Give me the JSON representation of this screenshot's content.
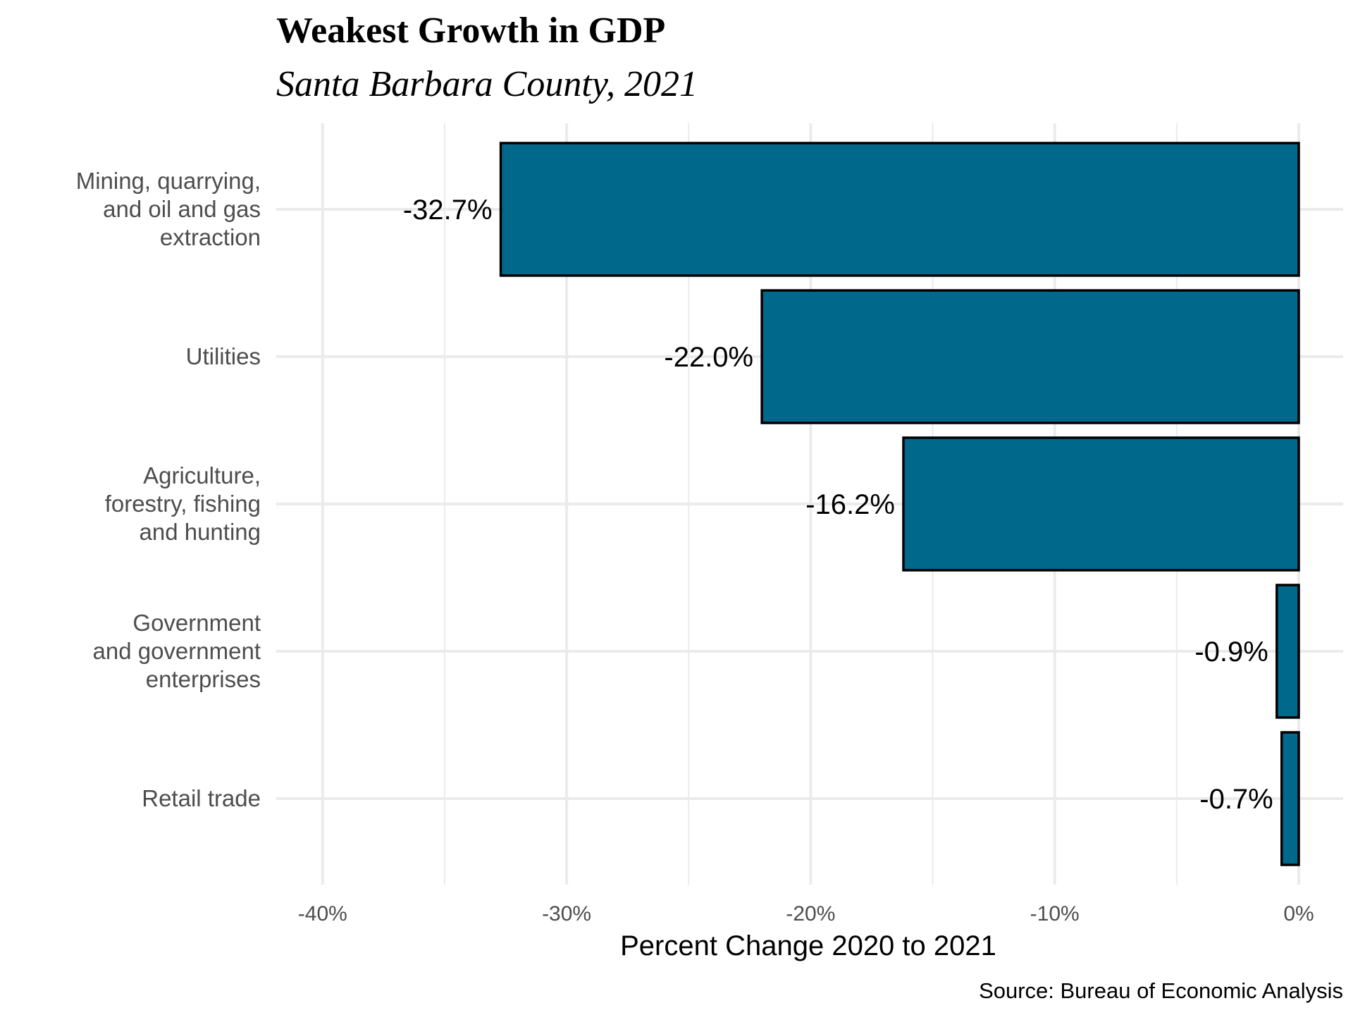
{
  "chart_data": {
    "type": "bar",
    "orientation": "horizontal",
    "title": "Weakest Growth in GDP",
    "subtitle": "Santa Barbara County, 2021",
    "categories": [
      [
        "Mining, quarrying,",
        "and oil and gas",
        "extraction"
      ],
      [
        "Utilities"
      ],
      [
        "Agriculture,",
        "forestry, fishing",
        "and hunting"
      ],
      [
        "Government",
        "and government",
        "enterprises"
      ],
      [
        "Retail trade"
      ]
    ],
    "values": [
      -32.7,
      -22.0,
      -16.2,
      -0.9,
      -0.7
    ],
    "data_labels": [
      "-32.7%",
      "-22.0%",
      "-16.2%",
      "-0.9%",
      "-0.7%"
    ],
    "xlabel": "Percent Change 2020 to 2021",
    "ylabel": "",
    "xlim": [
      -40,
      0
    ],
    "x_ticks": [
      -40,
      -30,
      -20,
      -10,
      0
    ],
    "x_tick_labels": [
      "-40%",
      "-30%",
      "-20%",
      "-10%",
      "0%"
    ],
    "caption": "Source: Bureau of Economic Analysis",
    "grid": true,
    "legend": "none",
    "colors": {
      "bar_fill": "#00688b",
      "bar_stroke": "#000000",
      "grid": "#ebebeb"
    }
  }
}
